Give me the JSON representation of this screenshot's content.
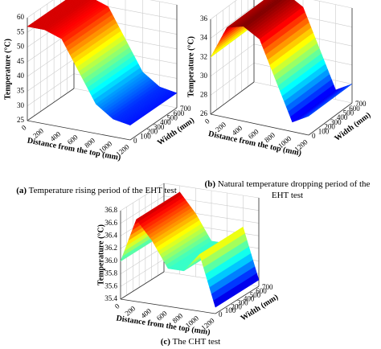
{
  "chart_data": [
    {
      "type": "surface",
      "label": "(a)",
      "caption": "Temperature rising period of the EHT test",
      "zlabel": "Temperature (°C)",
      "xlabel": "Distance from the top (mm)",
      "ylabel": "Width (mm)",
      "x": [
        0,
        200,
        400,
        600,
        800,
        1000,
        1200
      ],
      "values": [
        57,
        57,
        55,
        45,
        35,
        31,
        30
      ],
      "xlim": [
        0,
        1200
      ],
      "xticks": [
        0,
        200,
        400,
        600,
        800,
        1000,
        1200
      ],
      "ylim": [
        0,
        700
      ],
      "yticks": [
        0,
        100,
        200,
        300,
        400,
        500,
        600,
        700
      ],
      "zlim": [
        25,
        60
      ],
      "zticks": [
        25,
        30,
        35,
        40,
        45,
        50,
        55,
        60
      ]
    },
    {
      "type": "surface",
      "label": "(b)",
      "caption": "Natural temperature dropping period of the EHT test",
      "zlabel": "Temperature (°C)",
      "xlabel": "Distance from the top (mm)",
      "ylabel": "Width (mm)",
      "x": [
        0,
        200,
        400,
        600,
        800,
        1000,
        1200
      ],
      "values": [
        32,
        35.5,
        36,
        35,
        31,
        27,
        28
      ],
      "xlim": [
        0,
        1200
      ],
      "xticks": [
        0,
        200,
        400,
        600,
        800,
        1000,
        1200
      ],
      "ylim": [
        0,
        700
      ],
      "yticks": [
        0,
        100,
        200,
        300,
        400,
        500,
        600,
        700
      ],
      "zlim": [
        26,
        36
      ],
      "zticks": [
        26,
        28,
        30,
        32,
        34,
        36
      ]
    },
    {
      "type": "surface",
      "label": "(c)",
      "caption": "The CHT test",
      "zlabel": "Temperature (°C)",
      "xlabel": "Distance from the top (mm)",
      "ylabel": "Width (mm)",
      "x": [
        0,
        200,
        400,
        600,
        800,
        1000,
        1200
      ],
      "values": [
        36.0,
        36.7,
        36.4,
        36.0,
        36.0,
        36.3,
        35.5
      ],
      "xlim": [
        0,
        1200
      ],
      "xticks": [
        0,
        200,
        400,
        600,
        800,
        1000,
        1200
      ],
      "ylim": [
        0,
        700
      ],
      "yticks": [
        0,
        100,
        200,
        300,
        400,
        500,
        600,
        700
      ],
      "zlim": [
        35.4,
        36.8
      ],
      "zticks": [
        35.4,
        35.6,
        35.8,
        {
          "value": 36,
          "label": "36.0"
        },
        36.2,
        36.4,
        36.6,
        36.8
      ]
    }
  ]
}
